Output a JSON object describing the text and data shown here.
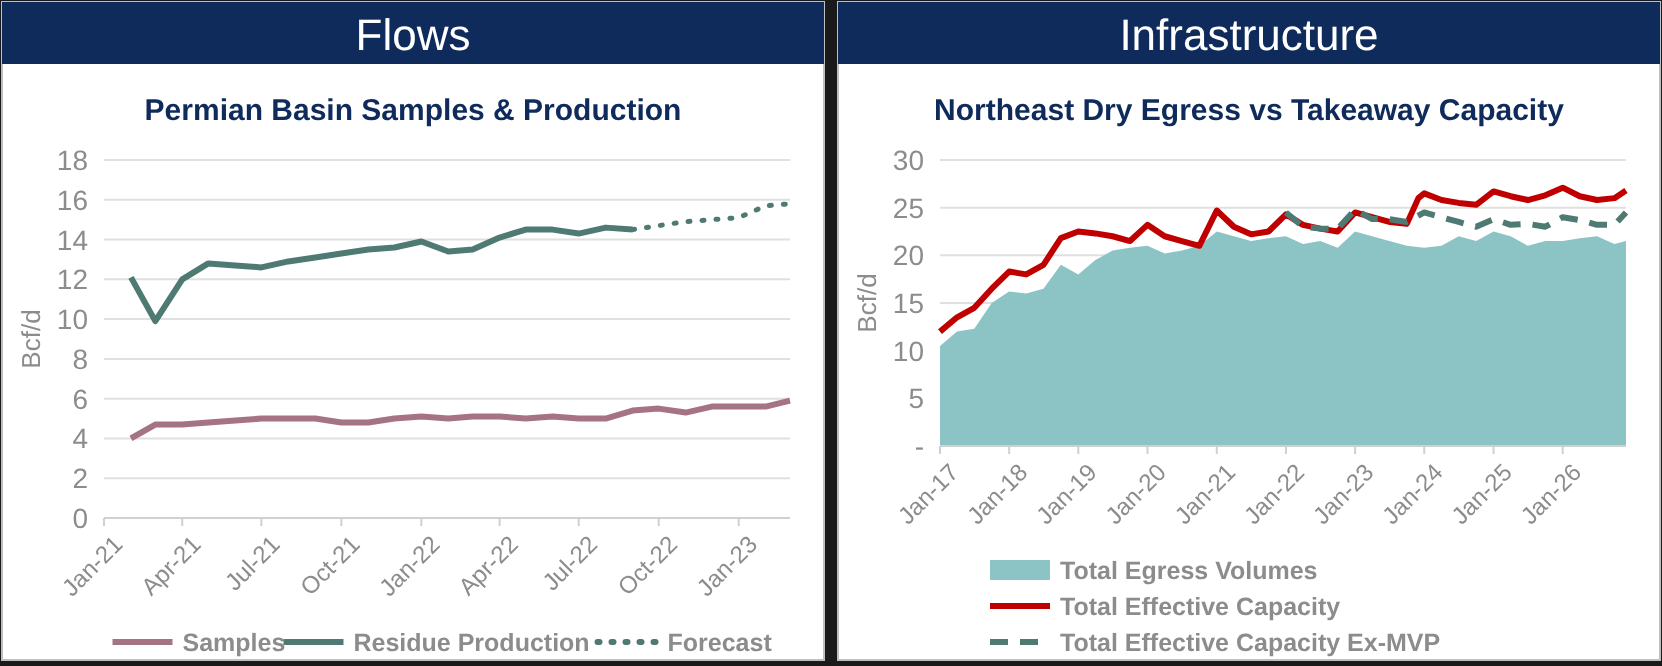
{
  "chart_data": [
    {
      "type": "line",
      "title": "Flows",
      "subtitle": "Permian Basin Samples & Production",
      "ylabel": "Bcf/d",
      "xlim": [
        "2021-01",
        "2023-03"
      ],
      "xticks": [
        {
          "value": "2021-01",
          "label": "Jan-21"
        },
        {
          "value": "2021-04",
          "label": "Apr-21"
        },
        {
          "value": "2021-07",
          "label": "Jul-21"
        },
        {
          "value": "2021-10",
          "label": "Oct-21"
        },
        {
          "value": "2022-01",
          "label": "Jan-22"
        },
        {
          "value": "2022-04",
          "label": "Apr-22"
        },
        {
          "value": "2022-07",
          "label": "Jul-22"
        },
        {
          "value": "2022-10",
          "label": "Oct-22"
        },
        {
          "value": "2023-01",
          "label": "Jan-23"
        }
      ],
      "ylim": [
        0,
        18
      ],
      "yticks": [
        0,
        2,
        4,
        6,
        8,
        10,
        12,
        14,
        16,
        18
      ],
      "grid": "y",
      "legend": "bottom",
      "series": [
        {
          "name": "Samples",
          "color": "#a67386",
          "line_style": "solid",
          "x": [
            "2021-02",
            "2021-03",
            "2021-04",
            "2021-05",
            "2021-06",
            "2021-07",
            "2021-08",
            "2021-09",
            "2021-10",
            "2021-11",
            "2021-12",
            "2022-01",
            "2022-02",
            "2022-03",
            "2022-04",
            "2022-05",
            "2022-06",
            "2022-07",
            "2022-08",
            "2022-09",
            "2022-10",
            "2022-11",
            "2022-12",
            "2023-01",
            "2023-02",
            "2023-03"
          ],
          "values": [
            4.0,
            4.7,
            4.7,
            4.8,
            4.9,
            5.0,
            5.0,
            5.0,
            4.8,
            4.8,
            5.0,
            5.1,
            5.0,
            5.1,
            5.1,
            5.0,
            5.1,
            5.0,
            5.0,
            5.4,
            5.5,
            5.3,
            5.6,
            5.6,
            5.6,
            5.9
          ]
        },
        {
          "name": "Residue Production",
          "color": "#4f7a74",
          "line_style": "solid",
          "x": [
            "2021-02",
            "2021-03",
            "2021-04",
            "2021-05",
            "2021-06",
            "2021-07",
            "2021-08",
            "2021-09",
            "2021-10",
            "2021-11",
            "2021-12",
            "2022-01",
            "2022-02",
            "2022-03",
            "2022-04",
            "2022-05",
            "2022-06",
            "2022-07",
            "2022-08",
            "2022-09"
          ],
          "values": [
            12.1,
            9.9,
            12.0,
            12.8,
            12.7,
            12.6,
            12.9,
            13.1,
            13.3,
            13.5,
            13.6,
            13.9,
            13.4,
            13.5,
            14.1,
            14.5,
            14.5,
            14.3,
            14.6,
            14.5
          ]
        },
        {
          "name": "Forecast",
          "color": "#4f7a74",
          "line_style": "dotted",
          "x": [
            "2022-09",
            "2022-10",
            "2022-11",
            "2022-12",
            "2023-01",
            "2023-02",
            "2023-03"
          ],
          "values": [
            14.5,
            14.7,
            14.9,
            15.0,
            15.1,
            15.7,
            15.8
          ]
        }
      ]
    },
    {
      "type": "line",
      "title": "Infrastructure",
      "subtitle": "Northeast Dry Egress vs Takeaway Capacity",
      "ylabel": "Bcf/d",
      "xlim": [
        "2017-01",
        "2026-12"
      ],
      "xticks": [
        {
          "value": "2017-01",
          "label": "Jan-17"
        },
        {
          "value": "2018-01",
          "label": "Jan-18"
        },
        {
          "value": "2019-01",
          "label": "Jan-19"
        },
        {
          "value": "2020-01",
          "label": "Jan-20"
        },
        {
          "value": "2021-01",
          "label": "Jan-21"
        },
        {
          "value": "2022-01",
          "label": "Jan-22"
        },
        {
          "value": "2023-01",
          "label": "Jan-23"
        },
        {
          "value": "2024-01",
          "label": "Jan-24"
        },
        {
          "value": "2025-01",
          "label": "Jan-25"
        },
        {
          "value": "2026-01",
          "label": "Jan-26"
        }
      ],
      "ylim": [
        0,
        30
      ],
      "yticks": [
        {
          "value": 0,
          "label": "-"
        },
        5,
        10,
        15,
        20,
        25,
        30
      ],
      "grid": "y",
      "legend": "bottom",
      "series": [
        {
          "name": "Total Egress Volumes",
          "type": "area",
          "color": "#8cc4c6",
          "x": [
            "2017-01",
            "2017-04",
            "2017-07",
            "2017-10",
            "2018-01",
            "2018-04",
            "2018-07",
            "2018-10",
            "2019-01",
            "2019-04",
            "2019-07",
            "2019-10",
            "2020-01",
            "2020-04",
            "2020-07",
            "2020-10",
            "2021-01",
            "2021-04",
            "2021-07",
            "2021-10",
            "2022-01",
            "2022-04",
            "2022-07",
            "2022-10",
            "2023-01",
            "2023-04",
            "2023-07",
            "2023-10",
            "2024-01",
            "2024-04",
            "2024-07",
            "2024-10",
            "2025-01",
            "2025-04",
            "2025-07",
            "2025-10",
            "2026-01",
            "2026-04",
            "2026-07",
            "2026-10",
            "2026-12"
          ],
          "values": [
            10.5,
            12.0,
            12.3,
            15.0,
            16.2,
            16.0,
            16.5,
            19.0,
            18.0,
            19.5,
            20.5,
            20.8,
            21.0,
            20.2,
            20.5,
            21.0,
            22.5,
            22.0,
            21.5,
            21.8,
            22.0,
            21.2,
            21.5,
            20.8,
            22.5,
            22.0,
            21.5,
            21.0,
            20.8,
            21.0,
            22.0,
            21.5,
            22.5,
            22.0,
            21.0,
            21.5,
            21.5,
            21.8,
            22.0,
            21.2,
            21.5
          ]
        },
        {
          "name": "Total Effective Capacity",
          "color": "#c00000",
          "line_style": "solid",
          "x": [
            "2017-01",
            "2017-04",
            "2017-07",
            "2017-10",
            "2018-01",
            "2018-04",
            "2018-07",
            "2018-10",
            "2019-01",
            "2019-04",
            "2019-07",
            "2019-10",
            "2020-01",
            "2020-04",
            "2020-07",
            "2020-10",
            "2021-01",
            "2021-04",
            "2021-07",
            "2021-10",
            "2022-01",
            "2022-04",
            "2022-07",
            "2022-10",
            "2023-01",
            "2023-04",
            "2023-07",
            "2023-10",
            "2023-12",
            "2024-01",
            "2024-04",
            "2024-07",
            "2024-10",
            "2025-01",
            "2025-04",
            "2025-07",
            "2025-10",
            "2026-01",
            "2026-04",
            "2026-07",
            "2026-10",
            "2026-12"
          ],
          "values": [
            12.0,
            13.5,
            14.5,
            16.5,
            18.3,
            18.0,
            19.0,
            21.8,
            22.5,
            22.3,
            22.0,
            21.5,
            23.2,
            22.0,
            21.5,
            21.0,
            24.7,
            23.0,
            22.2,
            22.5,
            24.3,
            23.2,
            22.8,
            22.5,
            24.5,
            24.0,
            23.5,
            23.3,
            26.0,
            26.5,
            25.8,
            25.5,
            25.3,
            26.7,
            26.2,
            25.8,
            26.3,
            27.1,
            26.2,
            25.8,
            26.0,
            26.8
          ]
        },
        {
          "name": "Total Effective Capacity Ex-MVP",
          "color": "#4f7a74",
          "line_style": "dashed",
          "x": [
            "2022-01",
            "2022-04",
            "2022-07",
            "2022-10",
            "2023-01",
            "2023-04",
            "2023-07",
            "2023-10",
            "2024-01",
            "2024-04",
            "2024-07",
            "2024-10",
            "2025-01",
            "2025-04",
            "2025-07",
            "2025-10",
            "2026-01",
            "2026-04",
            "2026-07",
            "2026-10",
            "2026-12"
          ],
          "values": [
            24.5,
            23.0,
            22.8,
            22.8,
            24.8,
            23.8,
            23.8,
            23.5,
            24.5,
            24.0,
            23.5,
            23.0,
            23.8,
            23.2,
            23.3,
            23.0,
            24.0,
            23.7,
            23.2,
            23.2,
            24.5
          ]
        }
      ]
    }
  ]
}
